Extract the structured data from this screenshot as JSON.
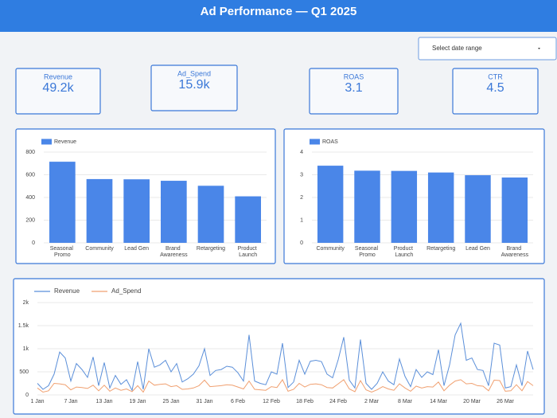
{
  "header": {
    "title": "Ad Performance — Q1 2025"
  },
  "date_selector": {
    "label": "Select date range"
  },
  "kpis": [
    {
      "label": "Revenue",
      "value": "49.2k"
    },
    {
      "label": "Ad_Spend",
      "value": "15.9k"
    },
    {
      "label": "ROAS",
      "value": "3.1"
    },
    {
      "label": "CTR",
      "value": "4.5"
    }
  ],
  "chart_data": [
    {
      "type": "bar",
      "categories": [
        "Seasonal Promo",
        "Community",
        "Lead Gen",
        "Brand Awareness",
        "Retargeting",
        "Product Launch"
      ],
      "series": [
        {
          "name": "Revenue",
          "color": "#4a86e8",
          "values": [
            715,
            562,
            560,
            547,
            503,
            410
          ]
        }
      ],
      "ylim": [
        0,
        800
      ],
      "yticks": [
        0,
        200,
        400,
        600,
        800
      ],
      "grid": true,
      "legend": "top-left"
    },
    {
      "type": "bar",
      "categories": [
        "Community",
        "Seasonal Promo",
        "Product Launch",
        "Retargeting",
        "Lead Gen",
        "Brand Awareness"
      ],
      "series": [
        {
          "name": "ROAS",
          "color": "#4a86e8",
          "values": [
            3.4,
            3.18,
            3.17,
            3.1,
            2.98,
            2.88
          ]
        }
      ],
      "ylim": [
        0,
        4
      ],
      "yticks": [
        0,
        1,
        2,
        3,
        4
      ],
      "grid": true,
      "legend": "top-left"
    },
    {
      "type": "line",
      "categories": [
        "1 Jan",
        null,
        null,
        null,
        null,
        null,
        "7 Jan",
        null,
        null,
        null,
        null,
        null,
        "13 Jan",
        null,
        null,
        null,
        null,
        null,
        "19 Jan",
        null,
        null,
        null,
        null,
        null,
        "25 Jan",
        null,
        null,
        null,
        null,
        null,
        "31 Jan",
        null,
        null,
        null,
        null,
        null,
        "6 Feb",
        null,
        null,
        null,
        null,
        null,
        "12 Feb",
        null,
        null,
        null,
        null,
        null,
        "18 Feb",
        null,
        null,
        null,
        null,
        null,
        "24 Feb",
        null,
        null,
        null,
        null,
        null,
        "2 Mar",
        null,
        null,
        null,
        null,
        null,
        "8 Mar",
        null,
        null,
        null,
        null,
        null,
        "14 Mar",
        null,
        null,
        null,
        null,
        null,
        "20 Mar",
        null,
        null,
        null,
        null,
        null,
        "26 Mar",
        null,
        null,
        null,
        null,
        null
      ],
      "series": [
        {
          "name": "Revenue",
          "color": "#5b8fd9",
          "values": [
            250,
            120,
            200,
            450,
            930,
            800,
            300,
            680,
            550,
            380,
            820,
            200,
            700,
            150,
            420,
            230,
            330,
            100,
            720,
            120,
            1000,
            600,
            650,
            750,
            500,
            680,
            280,
            350,
            450,
            630,
            1000,
            420,
            530,
            550,
            620,
            600,
            480,
            300,
            1300,
            300,
            250,
            220,
            500,
            450,
            1120,
            160,
            280,
            750,
            450,
            730,
            750,
            720,
            450,
            370,
            760,
            1250,
            320,
            150,
            1200,
            250,
            120,
            250,
            500,
            300,
            220,
            780,
            400,
            180,
            550,
            380,
            500,
            440,
            980,
            200,
            650,
            1300,
            1550,
            750,
            800,
            550,
            530,
            200,
            1120,
            1080,
            150,
            180,
            650,
            200,
            950,
            550
          ]
        },
        {
          "name": "Ad_Spend",
          "color": "#f0a070",
          "values": [
            150,
            60,
            90,
            250,
            240,
            220,
            110,
            170,
            160,
            140,
            210,
            90,
            210,
            80,
            150,
            100,
            130,
            70,
            200,
            60,
            300,
            210,
            230,
            240,
            180,
            200,
            120,
            130,
            150,
            200,
            320,
            180,
            190,
            200,
            220,
            210,
            170,
            130,
            300,
            120,
            110,
            100,
            180,
            160,
            330,
            80,
            120,
            250,
            170,
            230,
            240,
            220,
            160,
            150,
            240,
            330,
            130,
            70,
            310,
            110,
            60,
            110,
            180,
            130,
            100,
            240,
            150,
            80,
            190,
            150,
            180,
            170,
            280,
            90,
            210,
            300,
            330,
            240,
            250,
            200,
            190,
            90,
            320,
            310,
            80,
            90,
            220,
            90,
            290,
            200
          ]
        }
      ],
      "ylim": [
        0,
        2000
      ],
      "yticks": [
        0,
        500,
        {
          "value": 1000,
          "label": "1k"
        },
        {
          "value": 1500,
          "label": "1.5k"
        },
        {
          "value": 2000,
          "label": "2k"
        }
      ],
      "grid": true,
      "legend": "top-left"
    }
  ]
}
